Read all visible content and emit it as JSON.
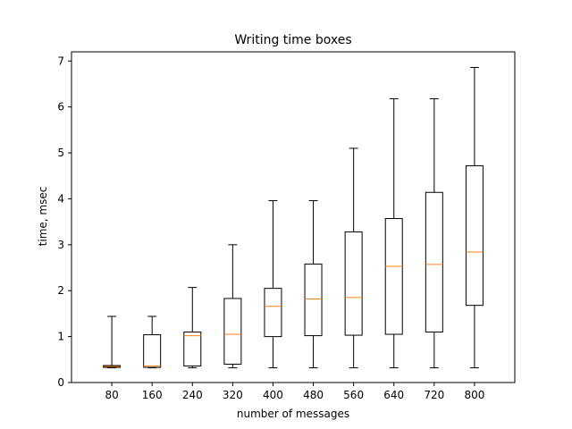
{
  "chart_data": {
    "type": "box",
    "title": "Writing time boxes",
    "xlabel": "number of messages",
    "ylabel": "time, msec",
    "ylim": [
      0,
      7.2
    ],
    "yticks": [
      "0",
      "1",
      "2",
      "3",
      "4",
      "5",
      "6",
      "7"
    ],
    "grid": false,
    "colors": {
      "box": "#000000",
      "median": "#ff7f0e",
      "background": "#ffffff"
    },
    "boxes": [
      {
        "label": "80",
        "whisker_low": 0.32,
        "q1": 0.33,
        "median": 0.35,
        "q3": 0.37,
        "whisker_high": 1.44
      },
      {
        "label": "160",
        "whisker_low": 0.32,
        "q1": 0.33,
        "median": 0.36,
        "q3": 1.04,
        "whisker_high": 1.44
      },
      {
        "label": "240",
        "whisker_low": 0.32,
        "q1": 0.36,
        "median": 1.02,
        "q3": 1.1,
        "whisker_high": 2.07
      },
      {
        "label": "320",
        "whisker_low": 0.32,
        "q1": 0.4,
        "median": 1.05,
        "q3": 1.83,
        "whisker_high": 3.0
      },
      {
        "label": "400",
        "whisker_low": 0.32,
        "q1": 1.0,
        "median": 1.66,
        "q3": 2.05,
        "whisker_high": 3.96
      },
      {
        "label": "480",
        "whisker_low": 0.32,
        "q1": 1.02,
        "median": 1.82,
        "q3": 2.58,
        "whisker_high": 3.96
      },
      {
        "label": "560",
        "whisker_low": 0.32,
        "q1": 1.03,
        "median": 1.85,
        "q3": 3.28,
        "whisker_high": 5.1
      },
      {
        "label": "640",
        "whisker_low": 0.32,
        "q1": 1.05,
        "median": 2.53,
        "q3": 3.57,
        "whisker_high": 6.18
      },
      {
        "label": "720",
        "whisker_low": 0.32,
        "q1": 1.1,
        "median": 2.57,
        "q3": 4.14,
        "whisker_high": 6.18
      },
      {
        "label": "800",
        "whisker_low": 0.32,
        "q1": 1.68,
        "median": 2.84,
        "q3": 4.72,
        "whisker_high": 6.86
      }
    ]
  }
}
